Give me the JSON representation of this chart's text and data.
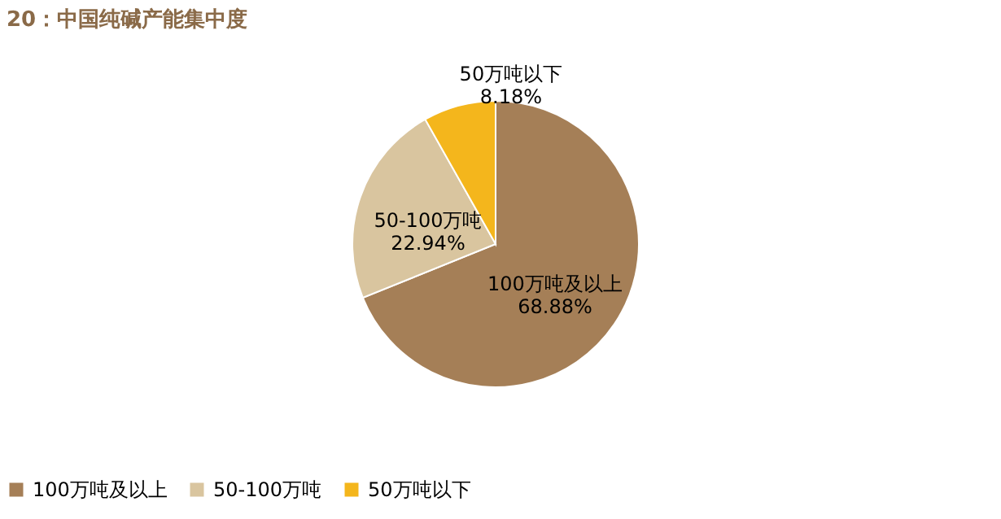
{
  "chart_data": {
    "type": "pie",
    "title": "20：中国纯碱产能集中度",
    "categories": [
      "100万吨及以上",
      "50-100万吨",
      "50万吨以下"
    ],
    "values": [
      68.88,
      22.94,
      8.18
    ],
    "value_labels": [
      "68.88%",
      "22.94%",
      "8.18%"
    ],
    "colors": [
      "#a57f57",
      "#d9c59f",
      "#f4b61c"
    ],
    "legend": "bottom"
  }
}
